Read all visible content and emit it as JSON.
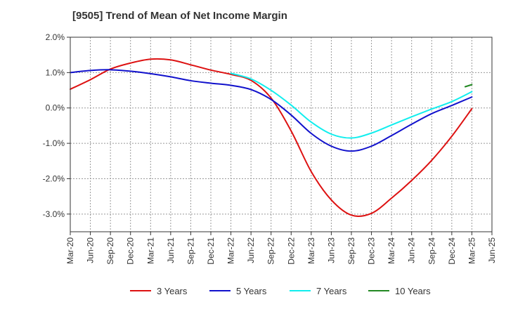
{
  "title": "[9505]  Trend of Mean of Net Income Margin",
  "chart_data": {
    "type": "line",
    "title": "[9505]  Trend of Mean of Net Income Margin",
    "xlabel": "",
    "ylabel": "",
    "x_tick_labels": [
      "Mar-20",
      "Jun-20",
      "Sep-20",
      "Dec-20",
      "Mar-21",
      "Jun-21",
      "Sep-21",
      "Dec-21",
      "Mar-22",
      "Jun-22",
      "Sep-22",
      "Dec-22",
      "Mar-23",
      "Jun-23",
      "Sep-23",
      "Dec-23",
      "Mar-24",
      "Jun-24",
      "Sep-24",
      "Dec-24",
      "Mar-25",
      "Jun-25"
    ],
    "y_tick_labels": [
      "2.0%",
      "1.0%",
      "0.0%",
      "-1.0%",
      "-2.0%",
      "-3.0%"
    ],
    "ylim": [
      -3.5,
      2.0
    ],
    "y_ticks": [
      2.0,
      1.0,
      0.0,
      -1.0,
      -2.0,
      -3.0
    ],
    "grid": true,
    "legend_position": "bottom",
    "series": [
      {
        "name": "3 Years",
        "color": "#dd1111",
        "x": [
          "Mar-20",
          "Jun-20",
          "Sep-20",
          "Dec-20",
          "Mar-21",
          "Jun-21",
          "Sep-21",
          "Dec-21",
          "Mar-22",
          "Jun-22",
          "Sep-22",
          "Dec-22",
          "Mar-23",
          "Jun-23",
          "Sep-23",
          "Dec-23",
          "Mar-24",
          "Jun-24",
          "Sep-24",
          "Dec-24",
          "Mar-25"
        ],
        "values": [
          0.53,
          0.8,
          1.1,
          1.27,
          1.38,
          1.36,
          1.22,
          1.07,
          0.95,
          0.78,
          0.28,
          -0.65,
          -1.8,
          -2.6,
          -3.03,
          -2.98,
          -2.55,
          -2.05,
          -1.48,
          -0.8,
          -0.02
        ]
      },
      {
        "name": "5 Years",
        "color": "#1111cc",
        "x": [
          "Mar-20",
          "Jun-20",
          "Sep-20",
          "Dec-20",
          "Mar-21",
          "Jun-21",
          "Sep-21",
          "Dec-21",
          "Mar-22",
          "Jun-22",
          "Sep-22",
          "Dec-22",
          "Mar-23",
          "Jun-23",
          "Sep-23",
          "Dec-23",
          "Mar-24",
          "Jun-24",
          "Sep-24",
          "Dec-24",
          "Mar-25"
        ],
        "values": [
          1.0,
          1.06,
          1.08,
          1.04,
          0.97,
          0.88,
          0.77,
          0.7,
          0.64,
          0.52,
          0.24,
          -0.2,
          -0.72,
          -1.08,
          -1.22,
          -1.08,
          -0.78,
          -0.46,
          -0.16,
          0.07,
          0.31
        ]
      },
      {
        "name": "7 Years",
        "color": "#11eeee",
        "x": [
          "Mar-22",
          "Jun-22",
          "Sep-22",
          "Dec-22",
          "Mar-23",
          "Jun-23",
          "Sep-23",
          "Dec-23",
          "Mar-24",
          "Jun-24",
          "Sep-24",
          "Dec-24",
          "Mar-25"
        ],
        "values": [
          0.98,
          0.82,
          0.5,
          0.08,
          -0.4,
          -0.74,
          -0.85,
          -0.71,
          -0.48,
          -0.25,
          -0.03,
          0.18,
          0.46
        ]
      },
      {
        "name": "10 Years",
        "color": "#228822",
        "x": [
          "Feb-25",
          "Mar-25"
        ],
        "values": [
          0.6,
          0.66
        ]
      }
    ]
  }
}
